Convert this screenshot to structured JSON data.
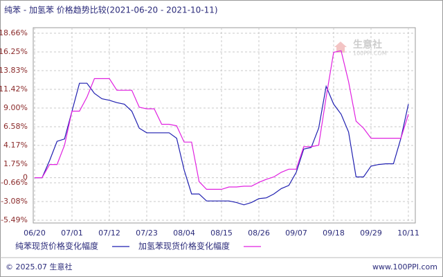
{
  "chart_data": {
    "type": "line",
    "title": "纯苯 - 加氢苯 价格趋势比较(2021-06-20 - 2021-10-11)",
    "categories": [
      "06/20",
      null,
      null,
      null,
      null,
      "07/01",
      null,
      null,
      null,
      null,
      "07/12",
      null,
      null,
      null,
      null,
      "07/23",
      null,
      null,
      null,
      null,
      "08/04",
      null,
      null,
      null,
      null,
      "08/15",
      null,
      null,
      null,
      null,
      "08/26",
      null,
      null,
      null,
      null,
      "09/07",
      null,
      null,
      null,
      null,
      "09/18",
      null,
      null,
      null,
      null,
      "09/29",
      null,
      null,
      null,
      null,
      "10/11"
    ],
    "series": [
      {
        "name": "纯苯现货价格变化幅度",
        "color": "#1f1fb0",
        "values": [
          0,
          0,
          2.2,
          4.7,
          5.0,
          8.6,
          12.2,
          12.2,
          10.9,
          10.2,
          10.0,
          9.7,
          9.5,
          8.6,
          6.4,
          5.8,
          5.8,
          5.8,
          5.8,
          5.1,
          1.0,
          -2.1,
          -2.1,
          -3.0,
          -3.0,
          -3.0,
          -3.0,
          -3.2,
          -3.5,
          -3.2,
          -2.7,
          -2.6,
          -2.1,
          -1.4,
          -1.0,
          0.7,
          3.7,
          3.9,
          6.4,
          11.8,
          9.5,
          8.2,
          5.9,
          0.1,
          0.1,
          1.5,
          1.7,
          1.8,
          1.8,
          5.1,
          9.5
        ]
      },
      {
        "name": "加氢苯现货价格变化幅度",
        "color": "#e020e0",
        "values": [
          0,
          0,
          1.7,
          1.7,
          4.2,
          8.6,
          8.6,
          10.4,
          12.8,
          12.8,
          12.8,
          11.3,
          11.3,
          11.3,
          9.1,
          8.9,
          8.9,
          6.9,
          6.9,
          6.7,
          4.6,
          4.6,
          -0.5,
          -1.5,
          -1.5,
          -1.5,
          -1.2,
          -1.2,
          -1.1,
          -1.1,
          -0.6,
          -0.2,
          0.1,
          0.7,
          1.1,
          1.1,
          4.0,
          4.0,
          4.2,
          10.4,
          16.2,
          16.4,
          12.4,
          7.3,
          6.4,
          5.1,
          5.1,
          5.1,
          5.1,
          5.1,
          8.2
        ]
      }
    ],
    "ylim": [
      -5.49,
      18.66
    ],
    "yticks": [
      {
        "value": 18.66,
        "label": "18.66%"
      },
      {
        "value": 16.25,
        "label": "16.25%"
      },
      {
        "value": 13.83,
        "label": "13.83%"
      },
      {
        "value": 11.42,
        "label": "11.42%"
      },
      {
        "value": 9.0,
        "label": "9.00%"
      },
      {
        "value": 6.58,
        "label": "6.58%"
      },
      {
        "value": 4.17,
        "label": "4.17%"
      },
      {
        "value": 1.75,
        "label": "1.75%"
      },
      0,
      {
        "value": -0.66,
        "label": "-0.66%"
      },
      {
        "value": -3.08,
        "label": "-3.08%"
      },
      {
        "value": -5.49,
        "label": "-5.49%"
      }
    ],
    "grid": true,
    "watermark": "生意社",
    "watermark_sub": "100PPI.COM",
    "footer_left": "© 2025.07 生意社",
    "footer_right": "www.100PPI.com"
  }
}
